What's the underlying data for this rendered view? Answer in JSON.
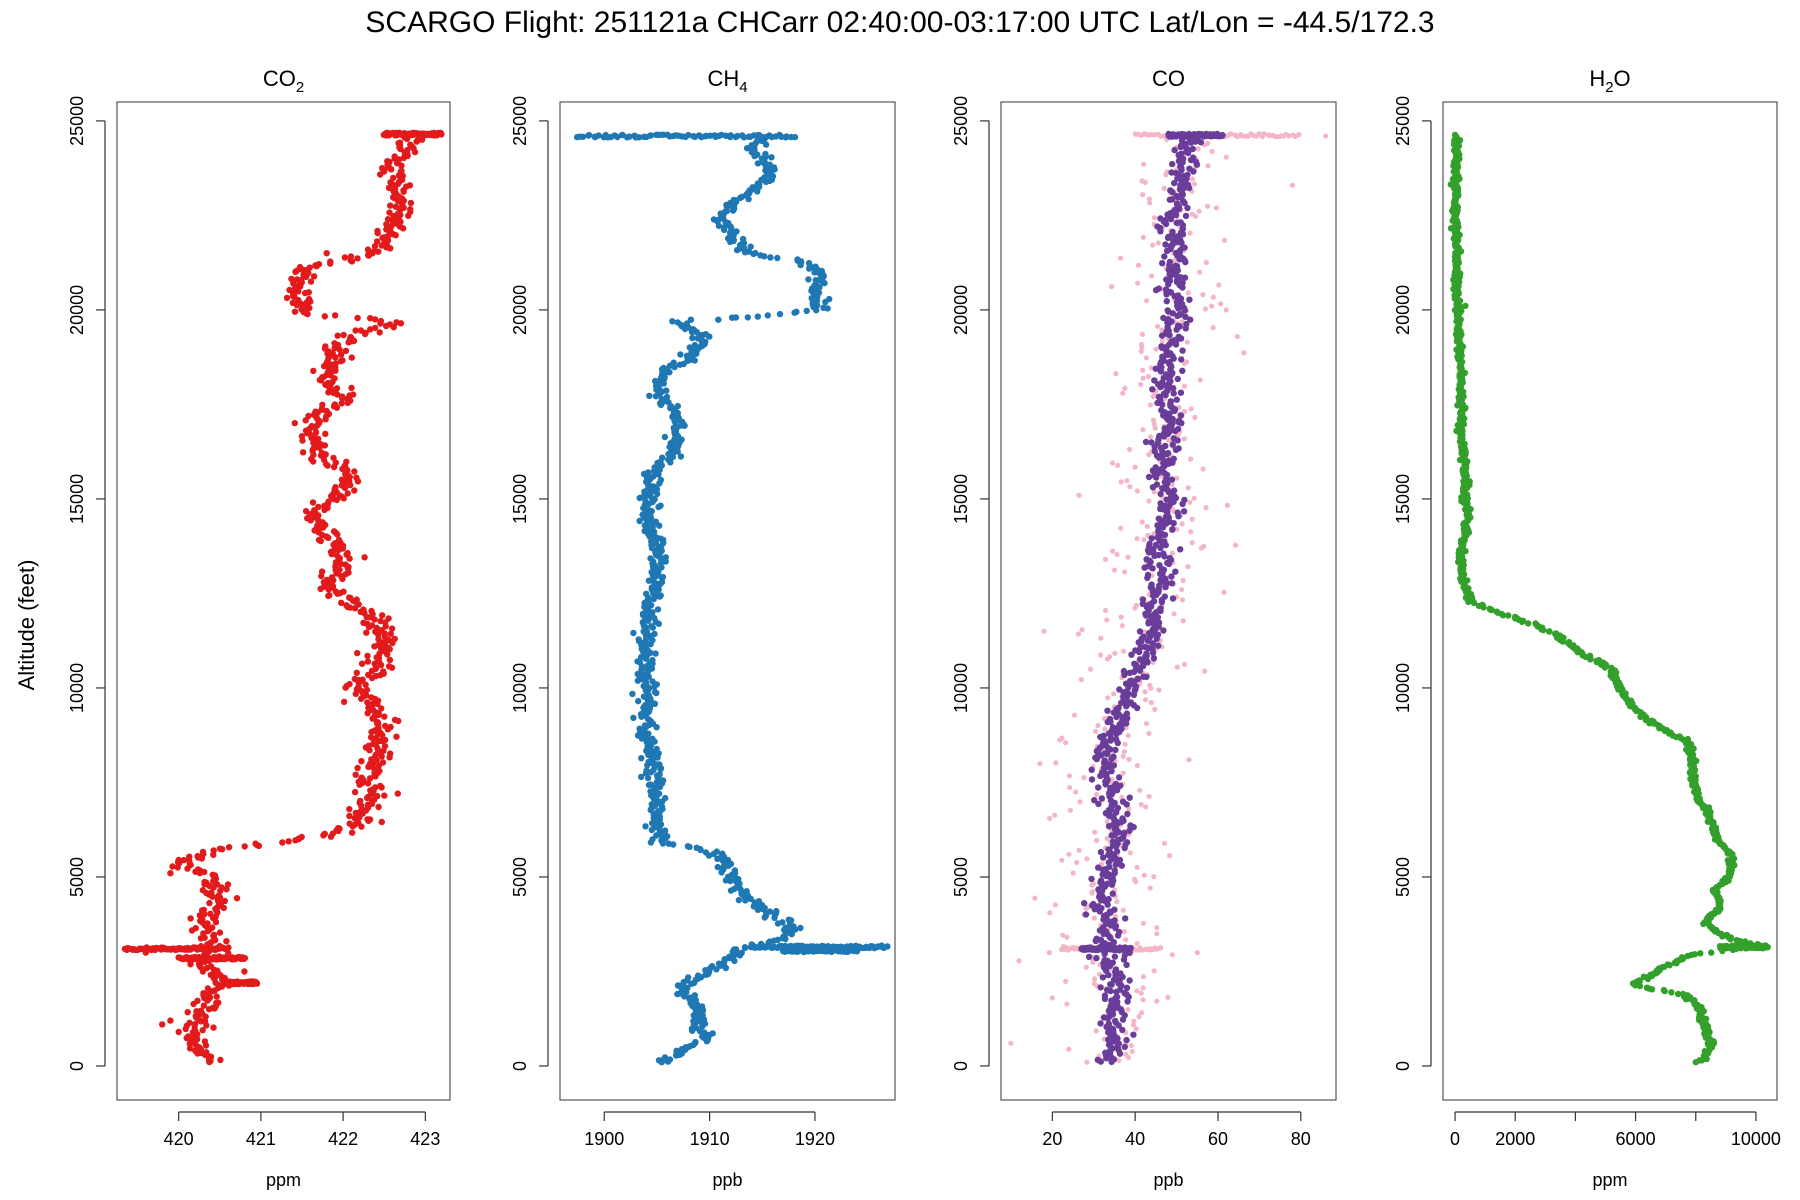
{
  "figure_title": "SCARGO Flight: 251121a  CHCarr  02:40:00-03:17:00 UTC  Lat/Lon = -44.5/172.3",
  "y_axis_label": "Altitude (feet)",
  "chart_data": [
    {
      "type": "scatter",
      "id": "co2",
      "title_main": "CO",
      "title_sub": "2",
      "xlabel": "ppm",
      "ylabel": "Altitude (feet)",
      "xlim": [
        419.25,
        423.3
      ],
      "ylim": [
        -900,
        25500
      ],
      "xticks": [
        420,
        421,
        422,
        423
      ],
      "yticks": [
        0,
        5000,
        10000,
        15000,
        20000,
        25000
      ],
      "color": "#e31a1c",
      "profile": [
        [
          420.4,
          100
        ],
        [
          420.2,
          700
        ],
        [
          420.3,
          1500
        ],
        [
          420.5,
          2200
        ],
        [
          420.3,
          2700
        ],
        [
          420.4,
          3100
        ],
        [
          420.3,
          3700
        ],
        [
          420.5,
          4300
        ],
        [
          420.4,
          5000
        ],
        [
          420.0,
          5300
        ],
        [
          420.4,
          5700
        ],
        [
          421.2,
          5900
        ],
        [
          421.9,
          6150
        ],
        [
          422.2,
          6450
        ],
        [
          422.3,
          7000
        ],
        [
          422.4,
          8000
        ],
        [
          422.5,
          9100
        ],
        [
          422.2,
          10000
        ],
        [
          422.4,
          10500
        ],
        [
          422.5,
          11100
        ],
        [
          422.4,
          11800
        ],
        [
          422.1,
          12200
        ],
        [
          421.8,
          12700
        ],
        [
          422.0,
          13300
        ],
        [
          421.9,
          13800
        ],
        [
          421.6,
          14500
        ],
        [
          421.9,
          15100
        ],
        [
          422.1,
          15600
        ],
        [
          421.8,
          16000
        ],
        [
          421.6,
          16600
        ],
        [
          421.7,
          17200
        ],
        [
          422.0,
          17600
        ],
        [
          421.8,
          18200
        ],
        [
          421.9,
          19000
        ],
        [
          422.3,
          19500
        ],
        [
          422.6,
          19700
        ],
        [
          421.5,
          19900
        ],
        [
          421.4,
          20500
        ],
        [
          421.5,
          21100
        ],
        [
          422.5,
          21600
        ],
        [
          422.6,
          22200
        ],
        [
          422.7,
          22800
        ],
        [
          422.7,
          23300
        ],
        [
          422.6,
          23800
        ],
        [
          422.8,
          24300
        ],
        [
          422.8,
          24650
        ]
      ],
      "jitter": 0.09,
      "bursts": [
        {
          "alt": 24650,
          "from": 422.5,
          "to": 423.2
        },
        {
          "alt": 3100,
          "from": 419.35,
          "to": 420.6
        },
        {
          "alt": 2850,
          "from": 420.0,
          "to": 420.8
        },
        {
          "alt": 2200,
          "from": 420.6,
          "to": 420.95
        }
      ],
      "extra": [
        [
          419.8,
          1100
        ],
        [
          420.0,
          900
        ],
        [
          419.9,
          1200
        ],
        [
          420.6,
          4800
        ],
        [
          419.6,
          3000
        ],
        [
          421.8,
          21500
        ],
        [
          420.8,
          2500
        ],
        [
          419.9,
          5100
        ],
        [
          420.0,
          5450
        ]
      ]
    },
    {
      "type": "scatter",
      "id": "ch4",
      "title_main": "CH",
      "title_sub": "4",
      "xlabel": "ppb",
      "ylabel": "Altitude (feet)",
      "xlim": [
        1895.8,
        1927.6
      ],
      "ylim": [
        -900,
        25500
      ],
      "xticks": [
        1900,
        1910,
        1920
      ],
      "yticks": [
        0,
        5000,
        10000,
        15000,
        20000,
        25000
      ],
      "color": "#1f78b4",
      "profile": [
        [
          1905.3,
          100
        ],
        [
          1909.5,
          700
        ],
        [
          1909.0,
          1200
        ],
        [
          1908.5,
          1700
        ],
        [
          1907.0,
          2100
        ],
        [
          1910.5,
          2600
        ],
        [
          1913.0,
          3100
        ],
        [
          1917.5,
          3400
        ],
        [
          1918.0,
          3700
        ],
        [
          1916.0,
          4000
        ],
        [
          1913.5,
          4400
        ],
        [
          1912.0,
          5000
        ],
        [
          1911.5,
          5500
        ],
        [
          1909.0,
          5750
        ],
        [
          1905.5,
          5900
        ],
        [
          1905.0,
          6300
        ],
        [
          1904.8,
          7000
        ],
        [
          1904.6,
          8000
        ],
        [
          1904.0,
          9000
        ],
        [
          1904.2,
          10000
        ],
        [
          1904.0,
          11000
        ],
        [
          1904.2,
          12000
        ],
        [
          1904.9,
          13000
        ],
        [
          1905.0,
          14000
        ],
        [
          1904.0,
          14700
        ],
        [
          1904.8,
          15300
        ],
        [
          1904.5,
          15700
        ],
        [
          1906.0,
          16100
        ],
        [
          1907.0,
          16700
        ],
        [
          1906.5,
          17300
        ],
        [
          1905.0,
          17800
        ],
        [
          1905.5,
          18400
        ],
        [
          1908.0,
          18700
        ],
        [
          1909.5,
          19300
        ],
        [
          1907.0,
          19700
        ],
        [
          1913.0,
          19800
        ],
        [
          1920.5,
          20000
        ],
        [
          1920.0,
          20500
        ],
        [
          1920.5,
          21000
        ],
        [
          1918.5,
          21300
        ],
        [
          1913.5,
          21500
        ],
        [
          1912.0,
          22000
        ],
        [
          1911.0,
          22500
        ],
        [
          1913.0,
          23000
        ],
        [
          1916.0,
          23500
        ],
        [
          1915.0,
          24000
        ],
        [
          1914.0,
          24300
        ],
        [
          1915.0,
          24600
        ]
      ],
      "jitter": 0.45,
      "bursts": [
        {
          "alt": 24600,
          "from": 1897.5,
          "to": 1918.0
        },
        {
          "alt": 3150,
          "from": 1914.0,
          "to": 1926.8
        },
        {
          "alt": 3050,
          "from": 1917.0,
          "to": 1924.0
        }
      ],
      "extra": [
        [
          1905.2,
          150
        ],
        [
          1906.8,
          17200
        ],
        [
          1912.5,
          19800
        ],
        [
          1904.3,
          14600
        ]
      ]
    },
    {
      "type": "scatter",
      "id": "co",
      "title_main": "CO",
      "title_sub": "",
      "xlabel": "ppb",
      "ylabel": "Altitude (feet)",
      "xlim": [
        7.6,
        88.5
      ],
      "ylim": [
        -900,
        25500
      ],
      "xticks": [
        20,
        40,
        60,
        80
      ],
      "yticks": [
        0,
        5000,
        10000,
        15000,
        20000,
        25000
      ],
      "color": "#6a3d9a",
      "color_secondary": "#f4b6c6",
      "profile": [
        [
          33,
          100
        ],
        [
          36,
          600
        ],
        [
          34,
          1200
        ],
        [
          36,
          1800
        ],
        [
          35,
          2500
        ],
        [
          32,
          3100
        ],
        [
          34,
          3700
        ],
        [
          31,
          4300
        ],
        [
          33,
          5000
        ],
        [
          35,
          5700
        ],
        [
          37,
          6300
        ],
        [
          35,
          7000
        ],
        [
          33,
          7600
        ],
        [
          32,
          8200
        ],
        [
          35,
          8800
        ],
        [
          37,
          9400
        ],
        [
          39,
          10000
        ],
        [
          41,
          10600
        ],
        [
          43,
          11100
        ],
        [
          44,
          11700
        ],
        [
          45,
          12300
        ],
        [
          47,
          12800
        ],
        [
          45,
          13300
        ],
        [
          46,
          13900
        ],
        [
          48,
          14500
        ],
        [
          49,
          15000
        ],
        [
          46,
          15600
        ],
        [
          47,
          16200
        ],
        [
          48,
          16800
        ],
        [
          49,
          17400
        ],
        [
          47,
          18000
        ],
        [
          48,
          18600
        ],
        [
          49,
          19200
        ],
        [
          50,
          19800
        ],
        [
          49,
          20400
        ],
        [
          50,
          21000
        ],
        [
          50,
          21600
        ],
        [
          49,
          22200
        ],
        [
          50,
          22800
        ],
        [
          51,
          23400
        ],
        [
          52,
          24000
        ],
        [
          54,
          24600
        ]
      ],
      "jitter": 1.6,
      "spread": 6.5,
      "bursts": [
        {
          "alt": 24620,
          "from": 48,
          "to": 61
        },
        {
          "alt": 3100,
          "from": 27,
          "to": 39
        }
      ],
      "bursts_secondary": [
        {
          "alt": 24620,
          "from": 40,
          "to": 80
        },
        {
          "alt": 3100,
          "from": 22,
          "to": 46
        }
      ],
      "extra_secondary": [
        [
          10,
          600
        ],
        [
          17,
          8000
        ],
        [
          18,
          11500
        ],
        [
          86,
          24600
        ],
        [
          78,
          23300
        ],
        [
          62,
          20000
        ],
        [
          53,
          8100
        ],
        [
          55,
          3000
        ],
        [
          20,
          1800
        ],
        [
          24,
          5600
        ],
        [
          56,
          13700
        ]
      ]
    },
    {
      "type": "scatter",
      "id": "h2o",
      "title_main": "H",
      "title_sub": "2",
      "title_suffix": "O",
      "xlabel": "ppm",
      "ylabel": "Altitude (feet)",
      "xlim": [
        -400,
        10700
      ],
      "ylim": [
        -900,
        25500
      ],
      "xticks": [
        0,
        2000,
        6000,
        10000
      ],
      "xticks_minor": [
        4000,
        8000
      ],
      "yticks": [
        0,
        5000,
        10000,
        15000,
        20000,
        25000
      ],
      "color": "#33a02c",
      "profile": [
        [
          8200,
          150
        ],
        [
          8500,
          500
        ],
        [
          8300,
          1100
        ],
        [
          8100,
          1600
        ],
        [
          7600,
          1900
        ],
        [
          6500,
          2050
        ],
        [
          5900,
          2150
        ],
        [
          6600,
          2450
        ],
        [
          7200,
          2700
        ],
        [
          7800,
          2950
        ],
        [
          9500,
          3100
        ],
        [
          10300,
          3180
        ],
        [
          9000,
          3400
        ],
        [
          8300,
          3800
        ],
        [
          8800,
          4200
        ],
        [
          8700,
          4700
        ],
        [
          9100,
          5000
        ],
        [
          9200,
          5500
        ],
        [
          8700,
          6000
        ],
        [
          8500,
          6500
        ],
        [
          8100,
          7100
        ],
        [
          7900,
          7700
        ],
        [
          7900,
          8200
        ],
        [
          7700,
          8600
        ],
        [
          6500,
          9100
        ],
        [
          5900,
          9500
        ],
        [
          5500,
          10000
        ],
        [
          5200,
          10500
        ],
        [
          4000,
          11000
        ],
        [
          3400,
          11400
        ],
        [
          2200,
          11800
        ],
        [
          1400,
          12000
        ],
        [
          500,
          12300
        ],
        [
          300,
          12800
        ],
        [
          200,
          13300
        ],
        [
          300,
          14000
        ],
        [
          400,
          14600
        ],
        [
          300,
          15200
        ],
        [
          350,
          15800
        ],
        [
          250,
          16400
        ],
        [
          200,
          17200
        ],
        [
          200,
          18000
        ],
        [
          150,
          18800
        ],
        [
          100,
          19500
        ],
        [
          80,
          20500
        ],
        [
          50,
          21500
        ],
        [
          20,
          22500
        ],
        [
          30,
          23500
        ],
        [
          50,
          24650
        ]
      ],
      "jitter": 60,
      "bursts": [
        {
          "alt": 3150,
          "from": 8800,
          "to": 10400
        }
      ],
      "extra": [
        [
          8200,
          150
        ],
        [
          8000,
          100
        ]
      ]
    }
  ]
}
